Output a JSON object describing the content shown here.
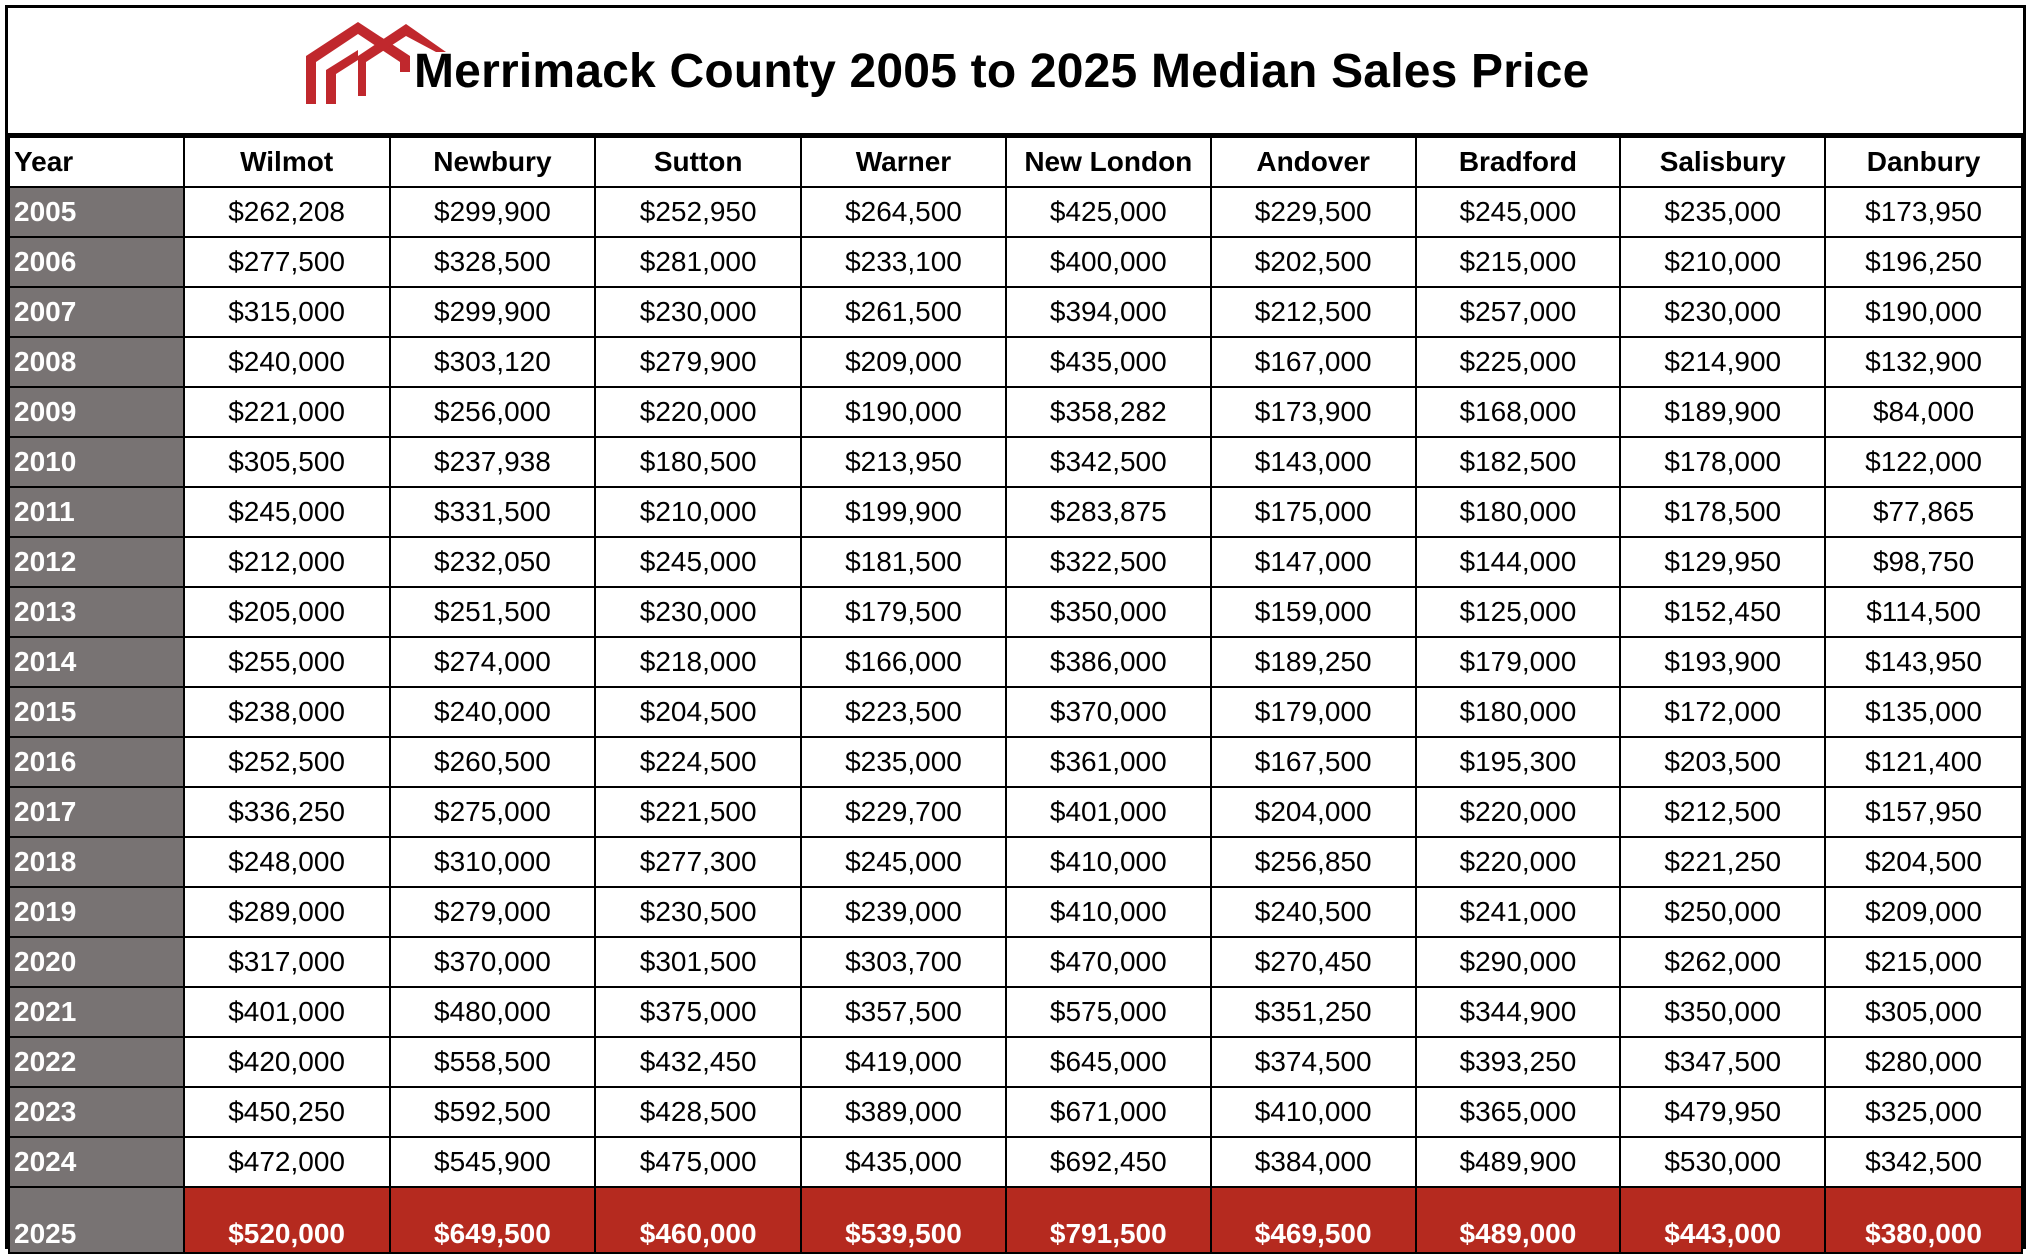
{
  "chart_data": {
    "type": "table",
    "title": "Merrimack County 2005 to 2025 Median Sales Price",
    "columns": [
      "Year",
      "Wilmot",
      "Newbury",
      "Sutton",
      "Warner",
      "New London",
      "Andover",
      "Bradford",
      "Salisbury",
      "Danbury"
    ],
    "rows": [
      [
        "2005",
        "$262,208",
        "$299,900",
        "$252,950",
        "$264,500",
        "$425,000",
        "$229,500",
        "$245,000",
        "$235,000",
        "$173,950"
      ],
      [
        "2006",
        "$277,500",
        "$328,500",
        "$281,000",
        "$233,100",
        "$400,000",
        "$202,500",
        "$215,000",
        "$210,000",
        "$196,250"
      ],
      [
        "2007",
        "$315,000",
        "$299,900",
        "$230,000",
        "$261,500",
        "$394,000",
        "$212,500",
        "$257,000",
        "$230,000",
        "$190,000"
      ],
      [
        "2008",
        "$240,000",
        "$303,120",
        "$279,900",
        "$209,000",
        "$435,000",
        "$167,000",
        "$225,000",
        "$214,900",
        "$132,900"
      ],
      [
        "2009",
        "$221,000",
        "$256,000",
        "$220,000",
        "$190,000",
        "$358,282",
        "$173,900",
        "$168,000",
        "$189,900",
        "$84,000"
      ],
      [
        "2010",
        "$305,500",
        "$237,938",
        "$180,500",
        "$213,950",
        "$342,500",
        "$143,000",
        "$182,500",
        "$178,000",
        "$122,000"
      ],
      [
        "2011",
        "$245,000",
        "$331,500",
        "$210,000",
        "$199,900",
        "$283,875",
        "$175,000",
        "$180,000",
        "$178,500",
        "$77,865"
      ],
      [
        "2012",
        "$212,000",
        "$232,050",
        "$245,000",
        "$181,500",
        "$322,500",
        "$147,000",
        "$144,000",
        "$129,950",
        "$98,750"
      ],
      [
        "2013",
        "$205,000",
        "$251,500",
        "$230,000",
        "$179,500",
        "$350,000",
        "$159,000",
        "$125,000",
        "$152,450",
        "$114,500"
      ],
      [
        "2014",
        "$255,000",
        "$274,000",
        "$218,000",
        "$166,000",
        "$386,000",
        "$189,250",
        "$179,000",
        "$193,900",
        "$143,950"
      ],
      [
        "2015",
        "$238,000",
        "$240,000",
        "$204,500",
        "$223,500",
        "$370,000",
        "$179,000",
        "$180,000",
        "$172,000",
        "$135,000"
      ],
      [
        "2016",
        "$252,500",
        "$260,500",
        "$224,500",
        "$235,000",
        "$361,000",
        "$167,500",
        "$195,300",
        "$203,500",
        "$121,400"
      ],
      [
        "2017",
        "$336,250",
        "$275,000",
        "$221,500",
        "$229,700",
        "$401,000",
        "$204,000",
        "$220,000",
        "$212,500",
        "$157,950"
      ],
      [
        "2018",
        "$248,000",
        "$310,000",
        "$277,300",
        "$245,000",
        "$410,000",
        "$256,850",
        "$220,000",
        "$221,250",
        "$204,500"
      ],
      [
        "2019",
        "$289,000",
        "$279,000",
        "$230,500",
        "$239,000",
        "$410,000",
        "$240,500",
        "$241,000",
        "$250,000",
        "$209,000"
      ],
      [
        "2020",
        "$317,000",
        "$370,000",
        "$301,500",
        "$303,700",
        "$470,000",
        "$270,450",
        "$290,000",
        "$262,000",
        "$215,000"
      ],
      [
        "2021",
        "$401,000",
        "$480,000",
        "$375,000",
        "$357,500",
        "$575,000",
        "$351,250",
        "$344,900",
        "$350,000",
        "$305,000"
      ],
      [
        "2022",
        "$420,000",
        "$558,500",
        "$432,450",
        "$419,000",
        "$645,000",
        "$374,500",
        "$393,250",
        "$347,500",
        "$280,000"
      ],
      [
        "2023",
        "$450,250",
        "$592,500",
        "$428,500",
        "$389,000",
        "$671,000",
        "$410,000",
        "$365,000",
        "$479,950",
        "$325,000"
      ],
      [
        "2024",
        "$472,000",
        "$545,900",
        "$475,000",
        "$435,000",
        "$692,450",
        "$384,000",
        "$489,900",
        "$530,000",
        "$342,500"
      ],
      [
        "2025",
        "$520,000",
        "$649,500",
        "$460,000",
        "$539,500",
        "$791,500",
        "$469,500",
        "$489,000",
        "$443,000",
        "$380,000"
      ]
    ],
    "highlight_row": "2025"
  },
  "colors": {
    "logo": "#c0282d",
    "year_cell": "#787373",
    "highlight_row": "#b52a1f"
  },
  "icons": {
    "logo": "house-roof-logo-icon"
  }
}
